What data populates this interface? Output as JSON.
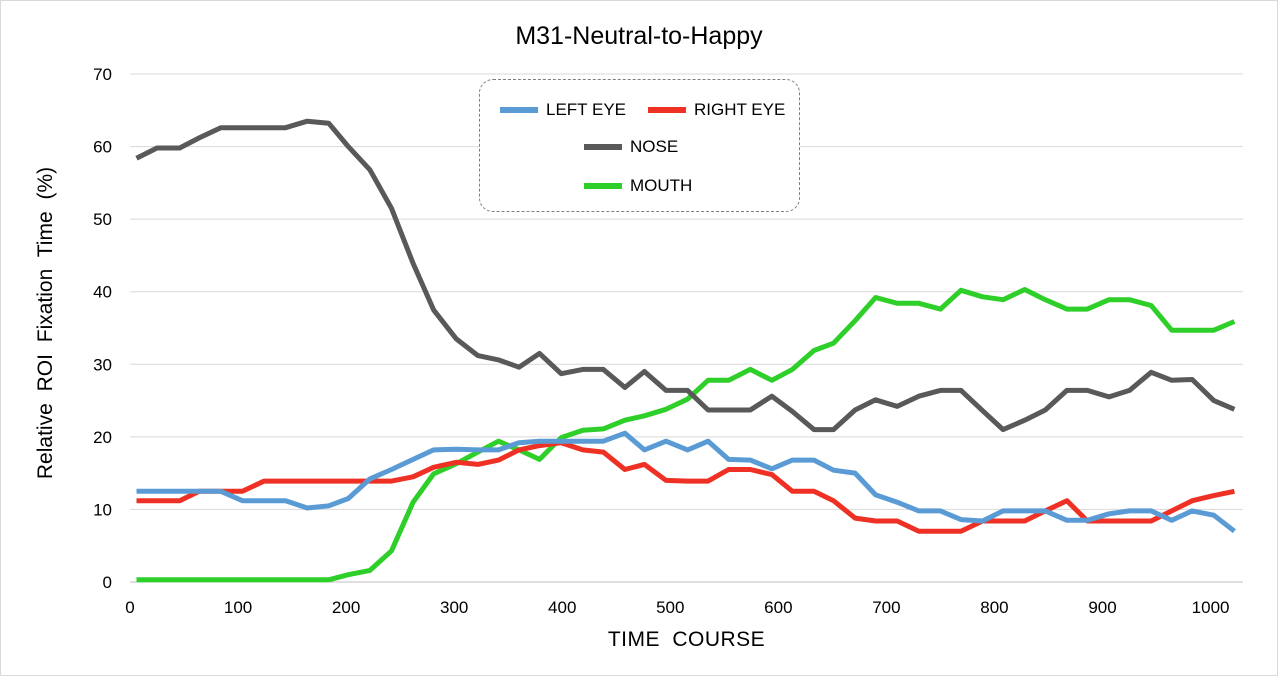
{
  "chart_data": {
    "type": "line",
    "title": "M31-Neutral-to-Happy",
    "xlabel": "TIME  COURSE",
    "ylabel": "Relative  ROI  Fixation  Time  (%)",
    "xlim": [
      0,
      1030
    ],
    "ylim": [
      0,
      70
    ],
    "xticks": [
      0,
      100,
      200,
      300,
      400,
      500,
      600,
      700,
      800,
      900,
      1000
    ],
    "yticks": [
      0,
      10,
      20,
      30,
      40,
      50,
      60,
      70
    ],
    "grid": "horizontal",
    "legend_position": "top-center",
    "x": [
      6,
      25,
      46,
      64,
      84,
      104,
      124,
      144,
      164,
      184,
      202,
      222,
      242,
      262,
      281,
      302,
      322,
      341,
      360,
      379,
      399,
      419,
      438,
      458,
      476,
      496,
      516,
      535,
      554,
      574,
      594,
      613,
      633,
      651,
      671,
      690,
      710,
      730,
      750,
      769,
      789,
      808,
      828,
      847,
      867,
      886,
      906,
      925,
      945,
      964,
      983,
      1003,
      1022
    ],
    "series": [
      {
        "name": "LEFT EYE",
        "color": "#5b9bd5",
        "values": [
          12.5,
          12.5,
          12.5,
          12.5,
          12.5,
          11.2,
          11.2,
          11.2,
          10.2,
          10.5,
          11.5,
          14.2,
          15.5,
          16.9,
          18.2,
          18.3,
          18.2,
          18.2,
          19.2,
          19.4,
          19.4,
          19.4,
          19.4,
          20.5,
          18.2,
          19.4,
          18.2,
          19.4,
          16.9,
          16.8,
          15.6,
          16.8,
          16.8,
          15.4,
          15.0,
          12.0,
          11.0,
          9.8,
          9.8,
          8.6,
          8.4,
          9.8,
          9.8,
          9.8,
          8.5,
          8.5,
          9.4,
          9.8,
          9.8,
          8.5,
          9.8,
          9.2,
          7.0
        ]
      },
      {
        "name": "RIGHT EYE",
        "color": "#ee3124",
        "values": [
          11.2,
          11.2,
          11.2,
          12.5,
          12.5,
          12.5,
          13.9,
          13.9,
          13.9,
          13.9,
          13.9,
          13.9,
          13.9,
          14.5,
          15.8,
          16.5,
          16.2,
          16.8,
          18.2,
          18.8,
          19.2,
          18.2,
          17.9,
          15.5,
          16.2,
          14.0,
          13.9,
          13.9,
          15.5,
          15.5,
          14.8,
          12.5,
          12.5,
          11.2,
          8.8,
          8.4,
          8.4,
          7.0,
          7.0,
          7.0,
          8.4,
          8.4,
          8.4,
          9.8,
          11.2,
          8.4,
          8.4,
          8.4,
          8.4,
          9.8,
          11.2,
          11.9,
          12.5
        ]
      },
      {
        "name": "NOSE",
        "color": "#595959",
        "values": [
          58.4,
          59.8,
          59.8,
          61.2,
          62.6,
          62.6,
          62.6,
          62.6,
          63.5,
          63.2,
          60.0,
          56.8,
          51.5,
          43.9,
          37.5,
          33.5,
          31.2,
          30.6,
          29.6,
          31.5,
          28.7,
          29.3,
          29.3,
          26.8,
          29.0,
          26.4,
          26.4,
          23.7,
          23.7,
          23.7,
          25.6,
          23.5,
          21.0,
          21.0,
          23.7,
          25.1,
          24.2,
          25.6,
          26.4,
          26.4,
          23.6,
          21.0,
          22.3,
          23.7,
          26.4,
          26.4,
          25.5,
          26.4,
          28.9,
          27.8,
          27.9,
          25.0,
          23.8
        ]
      },
      {
        "name": "MOUTH",
        "color": "#2fcf2a",
        "values": [
          0.3,
          0.3,
          0.3,
          0.3,
          0.3,
          0.3,
          0.3,
          0.3,
          0.3,
          0.3,
          1.0,
          1.6,
          4.3,
          11.0,
          14.9,
          16.3,
          17.9,
          19.4,
          18.2,
          16.9,
          19.9,
          20.9,
          21.1,
          22.3,
          22.9,
          23.8,
          25.2,
          27.8,
          27.8,
          29.3,
          27.8,
          29.3,
          31.9,
          32.9,
          36.0,
          39.2,
          38.4,
          38.4,
          37.6,
          40.2,
          39.3,
          38.9,
          40.3,
          38.9,
          37.6,
          37.6,
          38.9,
          38.9,
          38.1,
          34.7,
          34.7,
          34.7,
          35.9
        ]
      }
    ]
  }
}
